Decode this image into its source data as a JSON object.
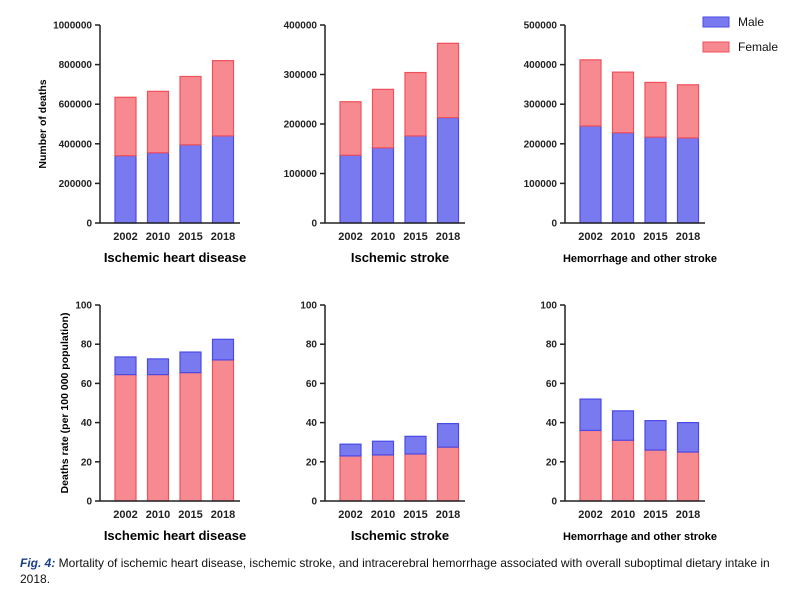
{
  "colors": {
    "male": "#7a7af0",
    "male_edge": "#4a4ae6",
    "female": "#f78a90",
    "female_edge": "#f0505a",
    "axis": "#222222"
  },
  "legend": {
    "male": "Male",
    "female": "Female"
  },
  "caption": {
    "label": "Fig. 4:",
    "text": " Mortality of ischemic heart disease, ischemic stroke, and intracerebral hemorrhage associated with overall suboptimal dietary intake in 2018."
  },
  "chart_data": [
    {
      "type": "bar",
      "stacked": true,
      "title": "Ischemic heart disease",
      "ylabel": "Number of deaths",
      "categories": [
        "2002",
        "2010",
        "2015",
        "2018"
      ],
      "ylim": [
        0,
        1000000
      ],
      "yticks": [
        0,
        200000,
        400000,
        600000,
        800000,
        1000000
      ],
      "ytick_labels": [
        "0",
        "200000",
        "400000",
        "600000",
        "800000",
        "1000000"
      ],
      "series": [
        {
          "name": "Male",
          "values": [
            340000,
            355000,
            395000,
            440000
          ]
        },
        {
          "name": "Female",
          "values": [
            295000,
            310000,
            345000,
            380000
          ]
        }
      ]
    },
    {
      "type": "bar",
      "stacked": true,
      "title": "Ischemic stroke",
      "ylabel": "",
      "categories": [
        "2002",
        "2010",
        "2015",
        "2018"
      ],
      "ylim": [
        0,
        400000
      ],
      "yticks": [
        0,
        100000,
        200000,
        300000,
        400000
      ],
      "ytick_labels": [
        "0",
        "100000",
        "200000",
        "300000",
        "400000"
      ],
      "series": [
        {
          "name": "Male",
          "values": [
            137000,
            152000,
            176000,
            213000
          ]
        },
        {
          "name": "Female",
          "values": [
            108000,
            118000,
            128000,
            150000
          ]
        }
      ]
    },
    {
      "type": "bar",
      "stacked": true,
      "title": "Hemorrhage and other stroke",
      "ylabel": "",
      "categories": [
        "2002",
        "2010",
        "2015",
        "2018"
      ],
      "ylim": [
        0,
        500000
      ],
      "yticks": [
        0,
        100000,
        200000,
        300000,
        400000,
        500000
      ],
      "ytick_labels": [
        "0",
        "100000",
        "200000",
        "300000",
        "400000",
        "500000"
      ],
      "legend_position": "top-right",
      "series": [
        {
          "name": "Male",
          "values": [
            245000,
            228000,
            217000,
            215000
          ]
        },
        {
          "name": "Female",
          "values": [
            167000,
            153000,
            138000,
            134000
          ]
        }
      ]
    },
    {
      "type": "bar",
      "stacked": true,
      "title": "Ischemic heart disease",
      "ylabel": "Deaths rate (per 100 000 population)",
      "categories": [
        "2002",
        "2010",
        "2015",
        "2018"
      ],
      "ylim": [
        0,
        100
      ],
      "yticks": [
        0,
        20,
        40,
        60,
        80,
        100
      ],
      "ytick_labels": [
        "0",
        "20",
        "40",
        "60",
        "80",
        "100"
      ],
      "series": [
        {
          "name": "Female",
          "values": [
            64.5,
            64.5,
            65.5,
            72
          ]
        },
        {
          "name": "Male",
          "values": [
            9,
            8,
            10.5,
            10.5
          ]
        }
      ]
    },
    {
      "type": "bar",
      "stacked": true,
      "title": "Ischemic stroke",
      "ylabel": "",
      "categories": [
        "2002",
        "2010",
        "2015",
        "2018"
      ],
      "ylim": [
        0,
        100
      ],
      "yticks": [
        0,
        20,
        40,
        60,
        80,
        100
      ],
      "ytick_labels": [
        "0",
        "20",
        "40",
        "60",
        "80",
        "100"
      ],
      "series": [
        {
          "name": "Female",
          "values": [
            23,
            23.5,
            24,
            27.5
          ]
        },
        {
          "name": "Male",
          "values": [
            6,
            7,
            9,
            12
          ]
        }
      ]
    },
    {
      "type": "bar",
      "stacked": true,
      "title": "Hemorrhage and other stroke",
      "ylabel": "",
      "categories": [
        "2002",
        "2010",
        "2015",
        "2018"
      ],
      "ylim": [
        0,
        100
      ],
      "yticks": [
        0,
        20,
        40,
        60,
        80,
        100
      ],
      "ytick_labels": [
        "0",
        "20",
        "40",
        "60",
        "80",
        "100"
      ],
      "series": [
        {
          "name": "Female",
          "values": [
            36,
            31,
            26,
            25
          ]
        },
        {
          "name": "Male",
          "values": [
            16,
            15,
            15,
            15
          ]
        }
      ]
    }
  ]
}
